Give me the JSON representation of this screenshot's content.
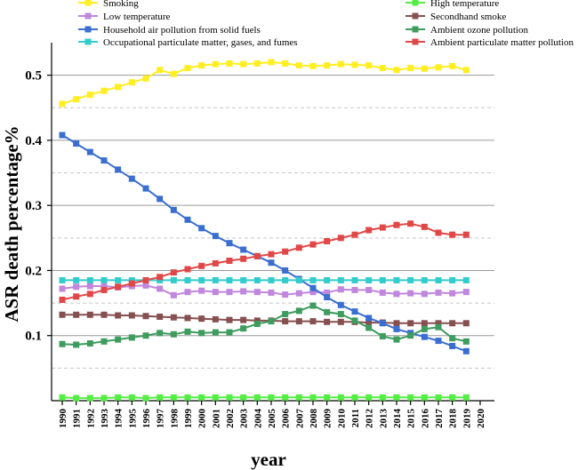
{
  "chart_data": {
    "type": "line",
    "title": "",
    "xlabel": "year",
    "ylabel": "ASR death percentage%",
    "x": [
      1990,
      1991,
      1992,
      1993,
      1994,
      1995,
      1996,
      1997,
      1998,
      1999,
      2000,
      2001,
      2002,
      2003,
      2004,
      2005,
      2006,
      2007,
      2008,
      2009,
      2010,
      2011,
      2012,
      2013,
      2014,
      2015,
      2016,
      2017,
      2018,
      2019
    ],
    "xticks": [
      "1990",
      "1991",
      "1992",
      "1993",
      "1994",
      "1995",
      "1996",
      "1997",
      "1998",
      "1999",
      "2000",
      "2001",
      "2002",
      "2003",
      "2004",
      "2005",
      "2006",
      "2007",
      "2008",
      "2009",
      "2010",
      "2011",
      "2012",
      "2013",
      "2014",
      "2015",
      "2016",
      "2017",
      "2018",
      "2019",
      "2020"
    ],
    "xlim": [
      1990,
      2020
    ],
    "ylim": [
      0.0,
      0.55
    ],
    "yticks": [
      0.1,
      0.2,
      0.3,
      0.4,
      0.5
    ],
    "ytick_labels": [
      "0.1",
      "0.2",
      "0.3",
      "0.4",
      "0.5"
    ],
    "grid_solid": [
      0.1,
      0.2,
      0.3,
      0.4,
      0.5
    ],
    "grid_dashed": [
      0.05,
      0.15,
      0.25,
      0.35,
      0.45
    ],
    "legend_position": "top",
    "series": [
      {
        "name": "Smoking",
        "color": "#ffee22",
        "column": 0,
        "values": [
          0.456,
          0.463,
          0.47,
          0.476,
          0.482,
          0.489,
          0.495,
          0.508,
          0.502,
          0.511,
          0.515,
          0.517,
          0.518,
          0.517,
          0.518,
          0.52,
          0.518,
          0.515,
          0.514,
          0.515,
          0.517,
          0.516,
          0.515,
          0.511,
          0.508,
          0.511,
          0.51,
          0.512,
          0.514,
          0.508
        ]
      },
      {
        "name": "High temperature",
        "color": "#55ee44",
        "column": 1,
        "values": [
          0.005,
          0.004,
          0.004,
          0.004,
          0.005,
          0.005,
          0.004,
          0.005,
          0.005,
          0.005,
          0.005,
          0.005,
          0.005,
          0.005,
          0.005,
          0.005,
          0.005,
          0.005,
          0.005,
          0.005,
          0.005,
          0.005,
          0.005,
          0.005,
          0.005,
          0.005,
          0.005,
          0.005,
          0.005,
          0.005
        ]
      },
      {
        "name": "Low temperature",
        "color": "#c087dd",
        "column": 0,
        "values": [
          0.172,
          0.175,
          0.176,
          0.176,
          0.174,
          0.176,
          0.177,
          0.172,
          0.162,
          0.167,
          0.169,
          0.167,
          0.167,
          0.168,
          0.167,
          0.166,
          0.163,
          0.165,
          0.167,
          0.166,
          0.171,
          0.17,
          0.17,
          0.166,
          0.164,
          0.165,
          0.164,
          0.166,
          0.165,
          0.167
        ]
      },
      {
        "name": "Secondhand smoke",
        "color": "#875050",
        "column": 1,
        "values": [
          0.132,
          0.132,
          0.132,
          0.132,
          0.131,
          0.131,
          0.13,
          0.129,
          0.128,
          0.127,
          0.126,
          0.125,
          0.124,
          0.124,
          0.123,
          0.123,
          0.122,
          0.122,
          0.122,
          0.121,
          0.121,
          0.121,
          0.12,
          0.12,
          0.119,
          0.119,
          0.119,
          0.119,
          0.119,
          0.119
        ]
      },
      {
        "name": "Household air pollution from solid fuels",
        "color": "#3a6fd0",
        "column": 0,
        "values": [
          0.408,
          0.395,
          0.382,
          0.369,
          0.355,
          0.341,
          0.326,
          0.31,
          0.293,
          0.278,
          0.265,
          0.253,
          0.242,
          0.232,
          0.222,
          0.212,
          0.2,
          0.187,
          0.173,
          0.159,
          0.147,
          0.137,
          0.127,
          0.119,
          0.11,
          0.104,
          0.098,
          0.092,
          0.084,
          0.076
        ]
      },
      {
        "name": "Ambient ozone pollution",
        "color": "#3e9c5e",
        "column": 1,
        "values": [
          0.087,
          0.086,
          0.088,
          0.091,
          0.094,
          0.097,
          0.1,
          0.104,
          0.102,
          0.106,
          0.104,
          0.105,
          0.105,
          0.111,
          0.118,
          0.122,
          0.133,
          0.138,
          0.146,
          0.136,
          0.133,
          0.123,
          0.112,
          0.099,
          0.094,
          0.1,
          0.11,
          0.113,
          0.096,
          0.091
        ]
      },
      {
        "name": "Occupational particulate matter, gases, and fumes",
        "color": "#33cccc",
        "column": 0,
        "values": [
          0.185,
          0.185,
          0.185,
          0.185,
          0.185,
          0.185,
          0.185,
          0.185,
          0.185,
          0.185,
          0.185,
          0.185,
          0.185,
          0.185,
          0.185,
          0.185,
          0.185,
          0.185,
          0.185,
          0.185,
          0.185,
          0.185,
          0.185,
          0.185,
          0.185,
          0.185,
          0.185,
          0.185,
          0.185,
          0.185
        ]
      },
      {
        "name": "Ambient particulate matter pollution",
        "color": "#e04848",
        "column": 1,
        "values": [
          0.155,
          0.16,
          0.164,
          0.17,
          0.175,
          0.18,
          0.185,
          0.19,
          0.197,
          0.202,
          0.207,
          0.211,
          0.215,
          0.218,
          0.222,
          0.225,
          0.229,
          0.235,
          0.24,
          0.245,
          0.25,
          0.255,
          0.262,
          0.266,
          0.27,
          0.272,
          0.267,
          0.258,
          0.255,
          0.255
        ]
      }
    ]
  }
}
